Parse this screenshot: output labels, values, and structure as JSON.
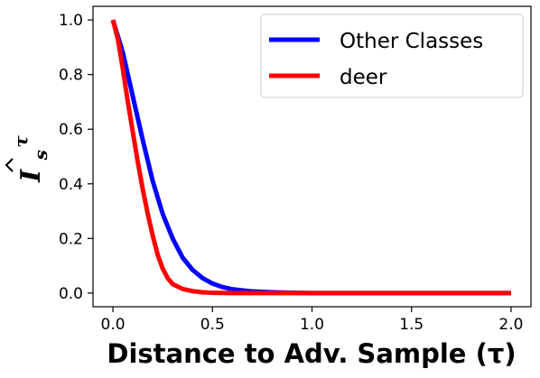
{
  "chart_data": {
    "type": "line",
    "title": "",
    "xlabel": "Distance to Adv. Sample (τ)",
    "ylabel": "Î_s^τ",
    "ylabel_parts": {
      "base": "I",
      "sub": "s",
      "sup": "τ"
    },
    "xlim": [
      -0.1,
      2.1
    ],
    "ylim": [
      -0.05,
      1.05
    ],
    "x_ticks": [
      0.0,
      0.5,
      1.0,
      1.5,
      2.0
    ],
    "x_tick_labels": [
      "0.0",
      "0.5",
      "1.0",
      "1.5",
      "2.0"
    ],
    "y_ticks": [
      0.0,
      0.2,
      0.4,
      0.6,
      0.8,
      1.0
    ],
    "y_tick_labels": [
      "0.0",
      "0.2",
      "0.4",
      "0.6",
      "0.8",
      "1.0"
    ],
    "grid": false,
    "legend_position": "top-right",
    "series": [
      {
        "name": "Other Classes",
        "color": "#0000ff",
        "x": [
          0.0,
          0.05,
          0.1,
          0.15,
          0.2,
          0.25,
          0.3,
          0.35,
          0.4,
          0.45,
          0.5,
          0.55,
          0.6,
          0.7,
          0.8,
          0.9,
          1.0,
          1.2,
          1.5,
          2.0
        ],
        "y": [
          1.0,
          0.88,
          0.72,
          0.56,
          0.41,
          0.29,
          0.2,
          0.13,
          0.085,
          0.055,
          0.035,
          0.022,
          0.014,
          0.006,
          0.003,
          0.001,
          0.0,
          0.0,
          0.0,
          0.0
        ]
      },
      {
        "name": "deer",
        "color": "#ff0000",
        "x": [
          0.0,
          0.025,
          0.05,
          0.075,
          0.1,
          0.125,
          0.15,
          0.175,
          0.2,
          0.225,
          0.25,
          0.275,
          0.3,
          0.35,
          0.4,
          0.45,
          0.5,
          0.6,
          0.8,
          1.0,
          1.5,
          2.0
        ],
        "y": [
          1.0,
          0.93,
          0.82,
          0.7,
          0.59,
          0.48,
          0.38,
          0.29,
          0.21,
          0.14,
          0.09,
          0.055,
          0.033,
          0.015,
          0.007,
          0.003,
          0.001,
          0.0,
          0.0,
          0.0,
          0.0,
          0.0
        ]
      }
    ]
  }
}
